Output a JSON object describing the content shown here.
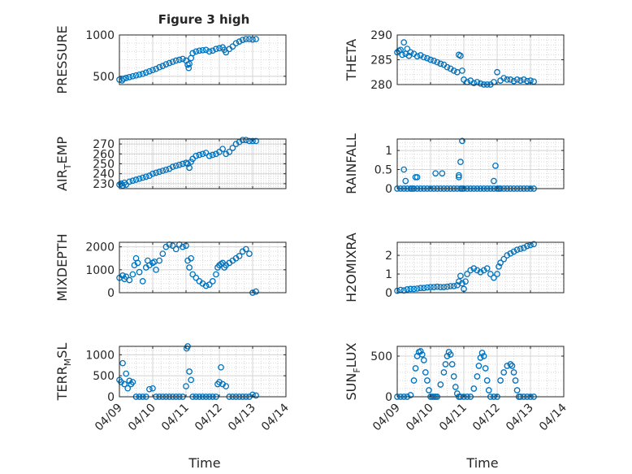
{
  "figure": {
    "title": "Figure 3 high",
    "xlabel": "Time",
    "marker_color": "#0072BD",
    "grid": "major and minor (dotted)"
  },
  "x_tick_labels": [
    "04/09",
    "04/10",
    "04/11",
    "04/12",
    "04/13",
    "04/14"
  ],
  "chart_data": [
    {
      "type": "scatter",
      "panel": "top-left",
      "ylabel": "PRESSURE",
      "ylabel_parts": [
        "PRESSURE"
      ],
      "xlim": [
        0,
        5
      ],
      "ylim": [
        400,
        1000
      ],
      "yticks": [
        500,
        1000
      ],
      "xticks": [
        0,
        1,
        2,
        3,
        4,
        5
      ],
      "x": [
        0,
        0.08,
        0.12,
        0.2,
        0.3,
        0.4,
        0.5,
        0.6,
        0.7,
        0.8,
        0.9,
        1.0,
        1.1,
        1.2,
        1.3,
        1.4,
        1.5,
        1.6,
        1.7,
        1.8,
        1.9,
        2.0,
        2.05,
        2.08,
        2.1,
        2.15,
        2.2,
        2.3,
        2.4,
        2.5,
        2.6,
        2.7,
        2.8,
        2.9,
        3.0,
        3.1,
        3.15,
        3.2,
        3.3,
        3.4,
        3.5,
        3.6,
        3.7,
        3.8,
        3.9,
        4.0,
        4.1
      ],
      "y": [
        460,
        450,
        470,
        480,
        490,
        500,
        510,
        520,
        530,
        545,
        560,
        575,
        590,
        610,
        625,
        645,
        660,
        675,
        690,
        700,
        710,
        690,
        640,
        600,
        650,
        720,
        780,
        800,
        810,
        815,
        820,
        800,
        810,
        830,
        840,
        850,
        820,
        790,
        830,
        860,
        900,
        920,
        940,
        950,
        950,
        945,
        950
      ]
    },
    {
      "type": "scatter",
      "panel": "top-right",
      "ylabel": "THETA",
      "ylabel_parts": [
        "THETA"
      ],
      "xlim": [
        0,
        5
      ],
      "ylim": [
        280,
        290
      ],
      "yticks": [
        280,
        285,
        290
      ],
      "xticks": [
        0,
        1,
        2,
        3,
        4,
        5
      ],
      "x": [
        0,
        0.05,
        0.1,
        0.15,
        0.2,
        0.25,
        0.3,
        0.35,
        0.4,
        0.5,
        0.6,
        0.7,
        0.8,
        0.9,
        1.0,
        1.1,
        1.2,
        1.3,
        1.4,
        1.5,
        1.6,
        1.7,
        1.8,
        1.85,
        1.9,
        1.95,
        2.0,
        2.1,
        2.2,
        2.3,
        2.4,
        2.5,
        2.6,
        2.7,
        2.8,
        2.9,
        3.0,
        3.1,
        3.2,
        3.3,
        3.4,
        3.5,
        3.6,
        3.7,
        3.8,
        3.9,
        4.0,
        4.1
      ],
      "y": [
        286.5,
        286.8,
        287,
        286,
        288.5,
        286.2,
        287.2,
        285.8,
        286.5,
        286.2,
        285.7,
        285.9,
        285.5,
        285.3,
        285,
        284.8,
        284.5,
        284.2,
        284,
        283.5,
        283.2,
        282.8,
        282.5,
        286,
        285.8,
        282.8,
        281,
        280.5,
        280.8,
        280.3,
        280.5,
        280.2,
        280,
        279.8,
        280,
        280.5,
        282.5,
        280.8,
        281.3,
        281,
        281,
        280.7,
        281,
        280.8,
        281,
        280.7,
        280.8,
        280.6
      ]
    },
    {
      "type": "scatter",
      "panel": "row2-left",
      "ylabel": "AIR_TEMP",
      "ylabel_parts": [
        "AIR",
        "T",
        "EMP"
      ],
      "xlim": [
        0,
        5
      ],
      "ylim": [
        225,
        275
      ],
      "yticks": [
        230,
        240,
        250,
        260,
        270
      ],
      "xticks": [
        0,
        1,
        2,
        3,
        4,
        5
      ],
      "x": [
        0,
        0.05,
        0.1,
        0.15,
        0.2,
        0.3,
        0.4,
        0.5,
        0.6,
        0.7,
        0.8,
        0.9,
        1.0,
        1.1,
        1.2,
        1.3,
        1.4,
        1.5,
        1.6,
        1.7,
        1.8,
        1.9,
        2.0,
        2.05,
        2.1,
        2.15,
        2.2,
        2.3,
        2.4,
        2.5,
        2.6,
        2.7,
        2.8,
        2.9,
        3.0,
        3.1,
        3.2,
        3.3,
        3.4,
        3.5,
        3.6,
        3.7,
        3.8,
        3.9,
        4.0,
        4.1
      ],
      "y": [
        229,
        230,
        228,
        231,
        229,
        232,
        233,
        234,
        235,
        236,
        237,
        238,
        240,
        241,
        242,
        243,
        244,
        245,
        247,
        248,
        249,
        250,
        251,
        250,
        246,
        252,
        255,
        258,
        259,
        260,
        261,
        258,
        259,
        260,
        262,
        265,
        260,
        262,
        266,
        270,
        272,
        274,
        274,
        273,
        273,
        273
      ]
    },
    {
      "type": "scatter",
      "panel": "row2-right",
      "ylabel": "RAINFALL",
      "ylabel_parts": [
        "RAINFALL"
      ],
      "xlim": [
        0,
        5
      ],
      "ylim": [
        0,
        1.3
      ],
      "yticks": [
        0,
        0.5,
        1
      ],
      "ytick_labels": [
        "0",
        "0.5",
        "1"
      ],
      "xticks": [
        0,
        1,
        2,
        3,
        4,
        5
      ],
      "x": [
        0,
        0.1,
        0.2,
        0.25,
        0.3,
        0.4,
        0.5,
        0.6,
        0.7,
        0.8,
        0.9,
        1.0,
        1.1,
        1.2,
        1.3,
        1.4,
        1.5,
        1.6,
        1.7,
        1.8,
        1.85,
        1.9,
        1.95,
        2.0,
        2.1,
        2.2,
        2.3,
        2.4,
        2.5,
        2.6,
        2.7,
        2.8,
        2.9,
        3.0,
        3.05,
        3.1,
        3.2,
        3.3,
        3.4,
        3.5,
        3.6,
        3.7,
        3.8,
        3.9,
        4.0,
        4.1,
        0.2,
        0.55,
        0.6,
        1.15,
        1.35,
        1.9,
        1.85,
        1.95,
        2.9,
        2.95,
        0.45
      ],
      "y": [
        0,
        0,
        0,
        0.2,
        0,
        0,
        0,
        0,
        0,
        0,
        0,
        0,
        0,
        0,
        0,
        0,
        0,
        0,
        0,
        0,
        0.35,
        0,
        0,
        0,
        0,
        0,
        0,
        0,
        0,
        0,
        0,
        0,
        0,
        0,
        0,
        0,
        0,
        0,
        0,
        0,
        0,
        0,
        0,
        0,
        0,
        0,
        0.5,
        0.3,
        0.3,
        0.4,
        0.4,
        0.7,
        0.3,
        1.25,
        0.2,
        0.6,
        0
      ]
    },
    {
      "type": "scatter",
      "panel": "row3-left",
      "ylabel": "MIXDEPTH",
      "ylabel_parts": [
        "MIXDEPTH"
      ],
      "xlim": [
        0,
        5
      ],
      "ylim": [
        0,
        2200
      ],
      "yticks": [
        0,
        1000,
        2000
      ],
      "xticks": [
        0,
        1,
        2,
        3,
        4,
        5
      ],
      "x": [
        0,
        0.1,
        0.15,
        0.2,
        0.3,
        0.4,
        0.45,
        0.5,
        0.55,
        0.6,
        0.7,
        0.8,
        0.85,
        0.9,
        1.0,
        1.05,
        1.1,
        1.2,
        1.3,
        1.4,
        1.5,
        1.6,
        1.7,
        1.8,
        1.9,
        2.0,
        2.05,
        2.1,
        2.15,
        2.2,
        2.3,
        2.4,
        2.5,
        2.6,
        2.7,
        2.8,
        2.9,
        2.95,
        3.0,
        3.05,
        3.1,
        3.15,
        3.2,
        3.3,
        3.4,
        3.5,
        3.6,
        3.7,
        3.8,
        3.9,
        4.0,
        4.1
      ],
      "y": [
        650,
        750,
        600,
        700,
        550,
        800,
        1200,
        1500,
        1300,
        900,
        500,
        1100,
        1400,
        1200,
        1300,
        1350,
        1000,
        1400,
        1700,
        2000,
        2100,
        2050,
        1900,
        2100,
        2000,
        2050,
        1400,
        1100,
        1500,
        800,
        650,
        500,
        400,
        300,
        350,
        500,
        800,
        1100,
        1200,
        1250,
        1300,
        1100,
        1200,
        1300,
        1400,
        1500,
        1600,
        1800,
        1900,
        1700,
        0,
        50
      ]
    },
    {
      "type": "scatter",
      "panel": "row3-right",
      "ylabel": "H2OMIXRA",
      "ylabel_parts": [
        "H2OMIXRA"
      ],
      "xlim": [
        0,
        5
      ],
      "ylim": [
        0,
        2.7
      ],
      "yticks": [
        0,
        1,
        2
      ],
      "xticks": [
        0,
        1,
        2,
        3,
        4,
        5
      ],
      "x": [
        0,
        0.1,
        0.2,
        0.3,
        0.4,
        0.5,
        0.6,
        0.7,
        0.8,
        0.9,
        1.0,
        1.1,
        1.2,
        1.3,
        1.4,
        1.5,
        1.6,
        1.7,
        1.8,
        1.85,
        1.9,
        1.95,
        2.0,
        2.05,
        2.1,
        2.2,
        2.3,
        2.4,
        2.5,
        2.6,
        2.7,
        2.8,
        2.9,
        3.0,
        3.05,
        3.1,
        3.2,
        3.3,
        3.4,
        3.5,
        3.6,
        3.7,
        3.8,
        3.9,
        4.0,
        4.1
      ],
      "y": [
        0.1,
        0.15,
        0.12,
        0.18,
        0.2,
        0.2,
        0.22,
        0.25,
        0.25,
        0.28,
        0.3,
        0.3,
        0.32,
        0.3,
        0.3,
        0.32,
        0.35,
        0.35,
        0.4,
        0.6,
        0.9,
        0.5,
        0.2,
        0.6,
        1.0,
        1.2,
        1.3,
        1.2,
        1.1,
        1.2,
        1.3,
        1.0,
        0.8,
        1.0,
        1.4,
        1.6,
        1.8,
        2.0,
        2.1,
        2.2,
        2.3,
        2.35,
        2.4,
        2.5,
        2.55,
        2.6
      ]
    },
    {
      "type": "scatter",
      "panel": "bottom-left",
      "ylabel": "TERR_MSL",
      "ylabel_parts": [
        "TERR",
        "M",
        "SL"
      ],
      "xlim": [
        0,
        5
      ],
      "ylim": [
        0,
        1200
      ],
      "yticks": [
        0,
        500,
        1000
      ],
      "xticks": [
        0,
        1,
        2,
        3,
        4,
        5
      ],
      "x": [
        0,
        0.05,
        0.1,
        0.15,
        0.2,
        0.25,
        0.3,
        0.35,
        0.4,
        0.5,
        0.6,
        0.7,
        0.8,
        0.9,
        1.0,
        1.1,
        1.2,
        1.3,
        1.4,
        1.5,
        1.6,
        1.7,
        1.8,
        1.9,
        2.0,
        2.02,
        2.05,
        2.1,
        2.15,
        2.2,
        2.3,
        2.4,
        2.5,
        2.6,
        2.7,
        2.8,
        2.9,
        2.95,
        3.0,
        3.05,
        3.1,
        3.2,
        3.3,
        3.4,
        3.5,
        3.6,
        3.7,
        3.8,
        3.9,
        4.0,
        4.1
      ],
      "y": [
        400,
        350,
        800,
        300,
        550,
        200,
        380,
        300,
        350,
        0,
        0,
        0,
        0,
        180,
        200,
        0,
        0,
        0,
        0,
        0,
        0,
        0,
        0,
        0,
        250,
        1150,
        1200,
        600,
        400,
        0,
        0,
        0,
        0,
        0,
        0,
        0,
        0,
        300,
        350,
        700,
        300,
        250,
        0,
        0,
        0,
        0,
        0,
        0,
        0,
        50,
        30
      ]
    },
    {
      "type": "scatter",
      "panel": "bottom-right",
      "ylabel": "SUN_FLUX",
      "ylabel_parts": [
        "SUN",
        "F",
        "LUX"
      ],
      "xlim": [
        0,
        5
      ],
      "ylim": [
        0,
        620
      ],
      "yticks": [
        0,
        500
      ],
      "xticks": [
        0,
        1,
        2,
        3,
        4,
        5
      ],
      "x": [
        0,
        0.1,
        0.2,
        0.3,
        0.4,
        0.5,
        0.55,
        0.6,
        0.65,
        0.7,
        0.75,
        0.8,
        0.85,
        0.9,
        0.95,
        1.0,
        1.05,
        1.1,
        1.15,
        1.2,
        1.3,
        1.4,
        1.45,
        1.5,
        1.55,
        1.6,
        1.65,
        1.7,
        1.75,
        1.8,
        1.85,
        1.9,
        2.0,
        2.1,
        2.2,
        2.3,
        2.4,
        2.45,
        2.5,
        2.55,
        2.6,
        2.65,
        2.7,
        2.75,
        2.8,
        2.9,
        3.0,
        3.1,
        3.2,
        3.3,
        3.4,
        3.45,
        3.5,
        3.55,
        3.6,
        3.65,
        3.7,
        3.8,
        3.9,
        4.0,
        4.1
      ],
      "y": [
        0,
        0,
        0,
        0,
        20,
        200,
        350,
        500,
        550,
        560,
        520,
        450,
        300,
        200,
        80,
        0,
        0,
        0,
        0,
        0,
        150,
        300,
        400,
        500,
        550,
        520,
        400,
        250,
        120,
        40,
        0,
        0,
        0,
        0,
        0,
        100,
        250,
        380,
        480,
        540,
        500,
        350,
        200,
        80,
        0,
        0,
        0,
        200,
        300,
        380,
        400,
        380,
        300,
        200,
        80,
        0,
        0,
        0,
        0,
        0,
        0
      ]
    }
  ]
}
